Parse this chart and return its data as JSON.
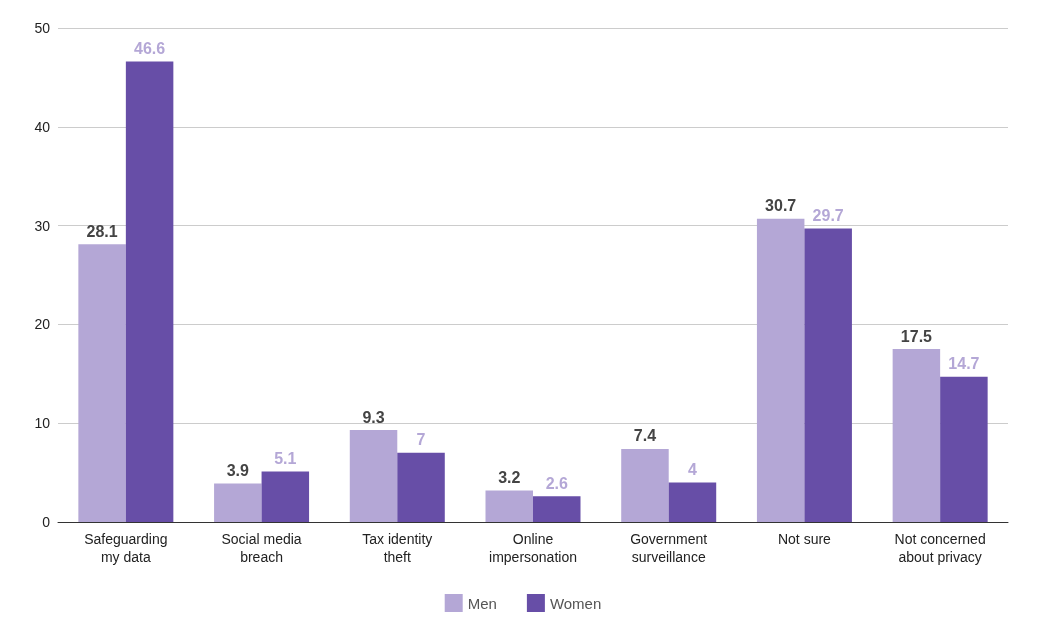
{
  "chart_data": {
    "type": "bar",
    "categories": [
      "Safeguarding\nmy data",
      "Social media\nbreach",
      "Tax identity\ntheft",
      "Online\nimpersonation",
      "Government\nsurveillance",
      "Not sure",
      "Not concerned\nabout privacy"
    ],
    "series": [
      {
        "name": "Men",
        "color": "#b4a7d6",
        "values": [
          28.1,
          3.9,
          9.3,
          3.2,
          7.4,
          30.7,
          17.5
        ]
      },
      {
        "name": "Women",
        "color": "#674ea7",
        "values": [
          46.6,
          5.1,
          7,
          2.6,
          4,
          29.7,
          14.7
        ]
      }
    ],
    "ylim": [
      0,
      50
    ],
    "yticks": [
      0,
      10,
      20,
      30,
      40,
      50
    ],
    "grid": "y",
    "legend": "bottom",
    "data_labels": true
  }
}
